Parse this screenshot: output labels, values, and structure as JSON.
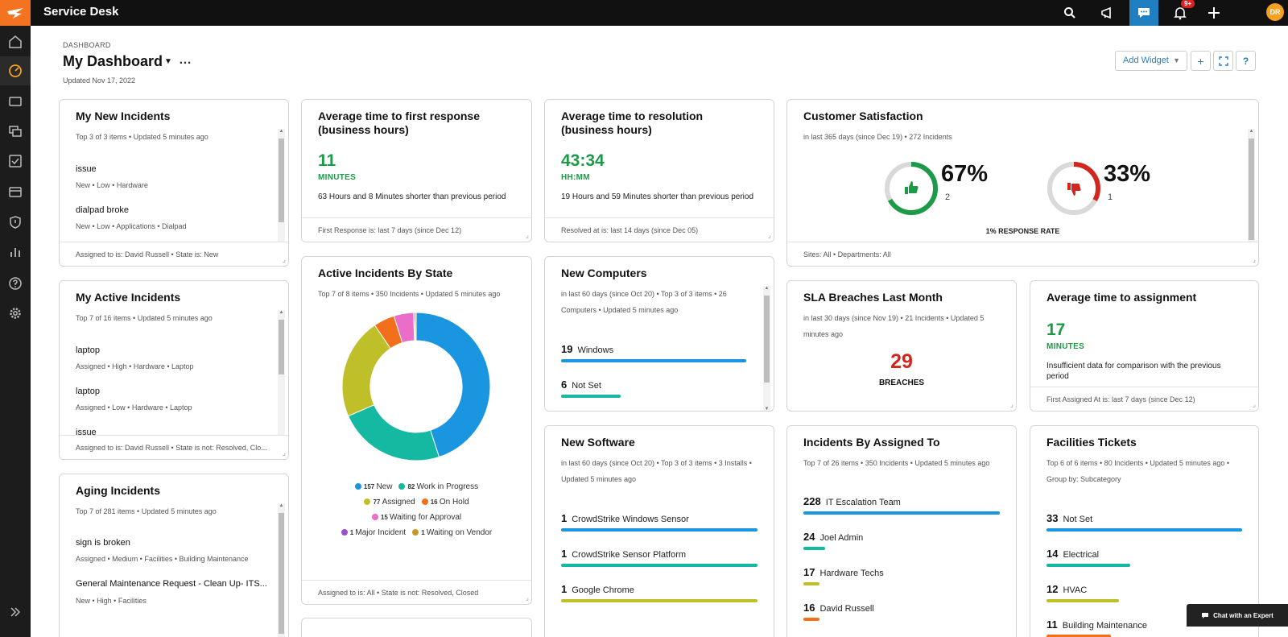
{
  "app": {
    "title": "Service Desk",
    "notification_badge": "9+",
    "user_initials": "DR"
  },
  "header": {
    "breadcrumb": "DASHBOARD",
    "title": "My Dashboard",
    "more": "…",
    "updated": "Updated Nov 17, 2022",
    "add_widget": "Add Widget"
  },
  "colors": {
    "accent": "#1f7fc0",
    "brand": "#f47321",
    "green": "#1c9a47",
    "red": "#d0281f"
  },
  "my_new_incidents": {
    "title": "My New Incidents",
    "meta": "Top 3 of 3 items • Updated 5 minutes ago",
    "items": [
      {
        "title": "issue",
        "meta": "New • Low • Hardware"
      },
      {
        "title": "dialpad broke",
        "meta": "New • Low • Applications • Dialpad"
      }
    ],
    "footer": "Assigned to is: David Russell • State is: New"
  },
  "my_active_incidents": {
    "title": "My Active Incidents",
    "meta": "Top 7 of 16 items • Updated 5 minutes ago",
    "items": [
      {
        "title": "laptop",
        "meta": "Assigned • High • Hardware • Laptop"
      },
      {
        "title": "laptop",
        "meta": "Assigned • Low • Hardware • Laptop"
      },
      {
        "title": "issue",
        "meta": ""
      }
    ],
    "footer": "Assigned to is: David Russell • State is not: Resolved, Clo..."
  },
  "aging_incidents": {
    "title": "Aging Incidents",
    "meta": "Top 7 of 281 items • Updated 5 minutes ago",
    "items": [
      {
        "title": "sign is broken",
        "meta": "Assigned • Medium • Facilities • Building Maintenance"
      },
      {
        "title": "General Maintenance Request - Clean Up- ITS...",
        "meta": "New • High • Facilities"
      }
    ]
  },
  "first_response": {
    "title": "Average time to first response (business hours)",
    "value": "11",
    "unit": "MINUTES",
    "desc": "63 Hours and 8 Minutes shorter than previous period",
    "footer": "First Response is: last 7 days (since Dec 12)"
  },
  "resolution": {
    "title": "Average time to resolution (business hours)",
    "value": "43:34",
    "unit": "HH:MM",
    "desc": "19 Hours and 59 Minutes shorter than previous period",
    "footer": "Resolved at is: last 14 days (since Dec 05)"
  },
  "customer_satisfaction": {
    "title": "Customer Satisfaction",
    "meta": "in last 365 days (since Dec 19) • 272 Incidents",
    "positive_pct": "67%",
    "positive_count": "2",
    "negative_pct": "33%",
    "negative_count": "1",
    "response_rate": "1% RESPONSE RATE",
    "positive_fraction": 0.67,
    "negative_fraction": 0.33,
    "footer": "Sites: All • Departments: All"
  },
  "active_by_state": {
    "title": "Active Incidents By State",
    "meta": "Top 7 of 8 items • 350 Incidents • Updated 5 minutes ago",
    "footer": "Assigned to is: All • State is not: Resolved, Closed"
  },
  "chart_data": {
    "type": "pie",
    "categories": [
      "New",
      "Work in Progress",
      "Assigned",
      "On Hold",
      "Waiting for Approval",
      "Major Incident",
      "Waiting on Vendor"
    ],
    "values": [
      157,
      82,
      77,
      16,
      15,
      1,
      1
    ],
    "colors": [
      "#1a95e0",
      "#15b8a0",
      "#bfbf2a",
      "#f46f1b",
      "#ea6ec7",
      "#9b4fd1",
      "#c49a26"
    ],
    "legend_placement": "bottom"
  },
  "new_computers": {
    "title": "New Computers",
    "meta": "in last 60 days (since Oct 20) • Top 3 of 3 items • 26 Computers • Updated 5 minutes ago",
    "rows": [
      {
        "value": "19",
        "label": "Windows",
        "fraction": 1.0,
        "color": "#1a95e0"
      },
      {
        "value": "6",
        "label": "Not Set",
        "fraction": 0.32,
        "color": "#15b8a0"
      }
    ]
  },
  "new_software": {
    "title": "New Software",
    "meta": "in last 60 days (since Oct 20) • Top 3 of 3 items • 3 Installs • Updated 5 minutes ago",
    "rows": [
      {
        "value": "1",
        "label": "CrowdStrike Windows Sensor",
        "fraction": 1.0,
        "color": "#1a95e0"
      },
      {
        "value": "1",
        "label": "CrowdStrike Sensor Platform",
        "fraction": 1.0,
        "color": "#15b8a0"
      },
      {
        "value": "1",
        "label": "Google Chrome",
        "fraction": 1.0,
        "color": "#bfbf2a"
      }
    ]
  },
  "sla_breaches": {
    "title": "SLA Breaches Last Month",
    "meta": "in last 30 days (since Nov 19) • 21 Incidents • Updated 5 minutes ago",
    "value": "29",
    "unit": "BREACHES"
  },
  "assignment_time": {
    "title": "Average time to assignment",
    "value": "17",
    "unit": "MINUTES",
    "desc": "Insufficient data for comparison with the previous period",
    "footer": "First Assigned At is: last 7 days (since Dec 12)"
  },
  "incidents_by_assigned": {
    "title": "Incidents By Assigned To",
    "meta": "Top 7 of 26 items • 350 Incidents • Updated 5 minutes ago",
    "rows": [
      {
        "value": "228",
        "label": "IT Escalation Team",
        "fraction": 1.0,
        "color": "#1a95e0"
      },
      {
        "value": "24",
        "label": "Joel Admin",
        "fraction": 0.11,
        "color": "#15b8a0"
      },
      {
        "value": "17",
        "label": "Hardware Techs",
        "fraction": 0.08,
        "color": "#bfbf2a"
      },
      {
        "value": "16",
        "label": "David Russell",
        "fraction": 0.08,
        "color": "#f46f1b"
      }
    ]
  },
  "facilities_tickets": {
    "title": "Facilities Tickets",
    "meta": "Top 6 of 6 items • 80 Incidents • Updated 5 minutes ago • Group by: Subcategory",
    "rows": [
      {
        "value": "33",
        "label": "Not Set",
        "fraction": 1.0,
        "color": "#1a95e0"
      },
      {
        "value": "14",
        "label": "Electrical",
        "fraction": 0.43,
        "color": "#15b8a0"
      },
      {
        "value": "12",
        "label": "HVAC",
        "fraction": 0.37,
        "color": "#bfbf2a"
      },
      {
        "value": "11",
        "label": "Building Maintenance",
        "fraction": 0.33,
        "color": "#f46f1b"
      }
    ]
  },
  "chat": {
    "label": "Chat with an Expert"
  }
}
